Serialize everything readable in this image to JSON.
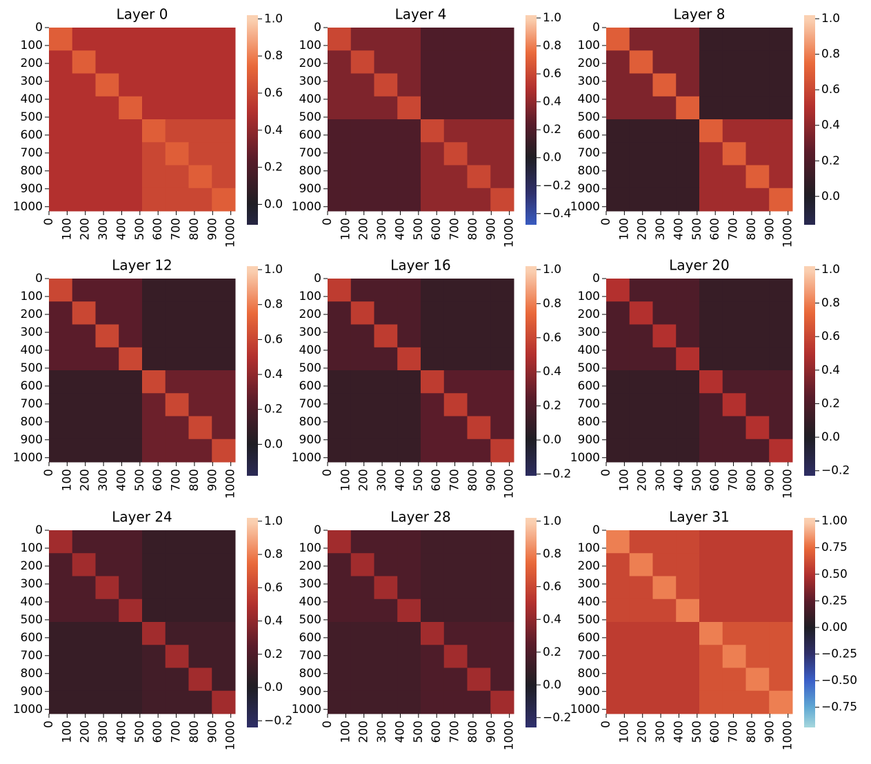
{
  "chart_data": [
    {
      "type": "heatmap",
      "title": "Layer 0",
      "cmap": "icefire",
      "xlim": [
        0,
        1024
      ],
      "ylim": [
        0,
        1024
      ],
      "xticks": [
        0,
        100,
        200,
        300,
        400,
        500,
        600,
        700,
        800,
        900,
        1000
      ],
      "yticks": [
        0,
        100,
        200,
        300,
        400,
        500,
        600,
        700,
        800,
        900,
        1000
      ],
      "clim": [
        -0.11,
        1.02
      ],
      "cticks": [
        {
          "value": 0,
          "label": "0.0"
        },
        0.2,
        0.4,
        0.6,
        0.8,
        {
          "value": 1,
          "label": "1.0"
        }
      ],
      "z": [
        [
          0.7,
          0.5,
          0.5,
          0.5,
          0.5,
          0.5,
          0.5,
          0.5
        ],
        [
          0.5,
          0.7,
          0.5,
          0.5,
          0.5,
          0.5,
          0.5,
          0.5
        ],
        [
          0.5,
          0.5,
          0.7,
          0.5,
          0.5,
          0.5,
          0.5,
          0.5
        ],
        [
          0.5,
          0.5,
          0.5,
          0.7,
          0.5,
          0.5,
          0.5,
          0.5
        ],
        [
          0.5,
          0.5,
          0.5,
          0.5,
          0.7,
          0.6,
          0.6,
          0.6
        ],
        [
          0.5,
          0.5,
          0.5,
          0.5,
          0.6,
          0.7,
          0.6,
          0.6
        ],
        [
          0.5,
          0.5,
          0.5,
          0.5,
          0.6,
          0.6,
          0.7,
          0.6
        ],
        [
          0.5,
          0.5,
          0.5,
          0.5,
          0.6,
          0.6,
          0.6,
          0.7
        ]
      ]
    },
    {
      "type": "heatmap",
      "title": "Layer 4",
      "cmap": "icefire",
      "xlim": [
        0,
        1024
      ],
      "ylim": [
        0,
        1024
      ],
      "xticks": [
        0,
        100,
        200,
        300,
        400,
        500,
        600,
        700,
        800,
        900,
        1000
      ],
      "yticks": [
        0,
        100,
        200,
        300,
        400,
        500,
        600,
        700,
        800,
        900,
        1000
      ],
      "clim": [
        -0.48,
        1.02
      ],
      "cticks": [
        {
          "value": -0.4,
          "label": "−0.4"
        },
        {
          "value": -0.2,
          "label": "−0.2"
        },
        {
          "value": 0,
          "label": "0.0"
        },
        0.2,
        0.4,
        0.6,
        0.8,
        {
          "value": 1,
          "label": "1.0"
        }
      ],
      "z": [
        [
          0.6,
          0.35,
          0.35,
          0.35,
          0.2,
          0.2,
          0.2,
          0.2
        ],
        [
          0.35,
          0.6,
          0.35,
          0.35,
          0.2,
          0.2,
          0.2,
          0.2
        ],
        [
          0.35,
          0.35,
          0.6,
          0.35,
          0.2,
          0.2,
          0.2,
          0.2
        ],
        [
          0.35,
          0.35,
          0.35,
          0.6,
          0.2,
          0.2,
          0.2,
          0.2
        ],
        [
          0.2,
          0.2,
          0.2,
          0.2,
          0.6,
          0.4,
          0.4,
          0.4
        ],
        [
          0.2,
          0.2,
          0.2,
          0.2,
          0.4,
          0.6,
          0.4,
          0.4
        ],
        [
          0.2,
          0.2,
          0.2,
          0.2,
          0.4,
          0.4,
          0.6,
          0.4
        ],
        [
          0.2,
          0.2,
          0.2,
          0.2,
          0.4,
          0.4,
          0.4,
          0.6
        ]
      ]
    },
    {
      "type": "heatmap",
      "title": "Layer 8",
      "cmap": "icefire",
      "xlim": [
        0,
        1024
      ],
      "ylim": [
        0,
        1024
      ],
      "xticks": [
        0,
        100,
        200,
        300,
        400,
        500,
        600,
        700,
        800,
        900,
        1000
      ],
      "yticks": [
        0,
        100,
        200,
        300,
        400,
        500,
        600,
        700,
        800,
        900,
        1000
      ],
      "clim": [
        -0.16,
        1.02
      ],
      "cticks": [
        {
          "value": 0,
          "label": "0.0"
        },
        0.2,
        0.4,
        0.6,
        0.8,
        {
          "value": 1,
          "label": "1.0"
        }
      ],
      "z": [
        [
          0.7,
          0.35,
          0.35,
          0.35,
          0.1,
          0.1,
          0.1,
          0.1
        ],
        [
          0.35,
          0.7,
          0.35,
          0.35,
          0.1,
          0.1,
          0.1,
          0.1
        ],
        [
          0.35,
          0.35,
          0.7,
          0.35,
          0.1,
          0.1,
          0.1,
          0.1
        ],
        [
          0.35,
          0.35,
          0.35,
          0.7,
          0.1,
          0.1,
          0.1,
          0.1
        ],
        [
          0.1,
          0.1,
          0.1,
          0.1,
          0.7,
          0.45,
          0.45,
          0.45
        ],
        [
          0.1,
          0.1,
          0.1,
          0.1,
          0.45,
          0.7,
          0.45,
          0.45
        ],
        [
          0.1,
          0.1,
          0.1,
          0.1,
          0.45,
          0.45,
          0.7,
          0.45
        ],
        [
          0.1,
          0.1,
          0.1,
          0.1,
          0.45,
          0.45,
          0.45,
          0.7
        ]
      ]
    },
    {
      "type": "heatmap",
      "title": "Layer 12",
      "cmap": "icefire",
      "xlim": [
        0,
        1024
      ],
      "ylim": [
        0,
        1024
      ],
      "xticks": [
        0,
        100,
        200,
        300,
        400,
        500,
        600,
        700,
        800,
        900,
        1000
      ],
      "yticks": [
        0,
        100,
        200,
        300,
        400,
        500,
        600,
        700,
        800,
        900,
        1000
      ],
      "clim": [
        -0.18,
        1.02
      ],
      "cticks": [
        {
          "value": 0,
          "label": "0.0"
        },
        0.2,
        0.4,
        0.6,
        0.8,
        {
          "value": 1,
          "label": "1.0"
        }
      ],
      "z": [
        [
          0.6,
          0.25,
          0.25,
          0.25,
          0.1,
          0.1,
          0.1,
          0.1
        ],
        [
          0.25,
          0.6,
          0.25,
          0.25,
          0.1,
          0.1,
          0.1,
          0.1
        ],
        [
          0.25,
          0.25,
          0.6,
          0.25,
          0.1,
          0.1,
          0.1,
          0.1
        ],
        [
          0.25,
          0.25,
          0.25,
          0.6,
          0.1,
          0.1,
          0.1,
          0.1
        ],
        [
          0.1,
          0.1,
          0.1,
          0.1,
          0.6,
          0.3,
          0.3,
          0.3
        ],
        [
          0.1,
          0.1,
          0.1,
          0.1,
          0.3,
          0.6,
          0.3,
          0.3
        ],
        [
          0.1,
          0.1,
          0.1,
          0.1,
          0.3,
          0.3,
          0.6,
          0.3
        ],
        [
          0.1,
          0.1,
          0.1,
          0.1,
          0.3,
          0.3,
          0.3,
          0.6
        ]
      ]
    },
    {
      "type": "heatmap",
      "title": "Layer 16",
      "cmap": "icefire",
      "xlim": [
        0,
        1024
      ],
      "ylim": [
        0,
        1024
      ],
      "xticks": [
        0,
        100,
        200,
        300,
        400,
        500,
        600,
        700,
        800,
        900,
        1000
      ],
      "yticks": [
        0,
        100,
        200,
        300,
        400,
        500,
        600,
        700,
        800,
        900,
        1000
      ],
      "clim": [
        -0.21,
        1.02
      ],
      "cticks": [
        {
          "value": -0.2,
          "label": "−0.2"
        },
        {
          "value": 0,
          "label": "0.0"
        },
        0.2,
        0.4,
        0.6,
        0.8,
        {
          "value": 1,
          "label": "1.0"
        }
      ],
      "z": [
        [
          0.55,
          0.2,
          0.2,
          0.2,
          0.1,
          0.1,
          0.1,
          0.1
        ],
        [
          0.2,
          0.55,
          0.2,
          0.2,
          0.1,
          0.1,
          0.1,
          0.1
        ],
        [
          0.2,
          0.2,
          0.55,
          0.2,
          0.1,
          0.1,
          0.1,
          0.1
        ],
        [
          0.2,
          0.2,
          0.2,
          0.55,
          0.1,
          0.1,
          0.1,
          0.1
        ],
        [
          0.1,
          0.1,
          0.1,
          0.1,
          0.55,
          0.25,
          0.25,
          0.25
        ],
        [
          0.1,
          0.1,
          0.1,
          0.1,
          0.25,
          0.55,
          0.25,
          0.25
        ],
        [
          0.1,
          0.1,
          0.1,
          0.1,
          0.25,
          0.25,
          0.55,
          0.25
        ],
        [
          0.1,
          0.1,
          0.1,
          0.1,
          0.25,
          0.25,
          0.25,
          0.55
        ]
      ]
    },
    {
      "type": "heatmap",
      "title": "Layer 20",
      "cmap": "icefire",
      "xlim": [
        0,
        1024
      ],
      "ylim": [
        0,
        1024
      ],
      "xticks": [
        0,
        100,
        200,
        300,
        400,
        500,
        600,
        700,
        800,
        900,
        1000
      ],
      "yticks": [
        0,
        100,
        200,
        300,
        400,
        500,
        600,
        700,
        800,
        900,
        1000
      ],
      "clim": [
        -0.23,
        1.02
      ],
      "cticks": [
        {
          "value": -0.2,
          "label": "−0.2"
        },
        {
          "value": 0,
          "label": "0.0"
        },
        0.2,
        0.4,
        0.6,
        0.8,
        {
          "value": 1,
          "label": "1.0"
        }
      ],
      "z": [
        [
          0.5,
          0.2,
          0.2,
          0.2,
          0.1,
          0.1,
          0.1,
          0.1
        ],
        [
          0.2,
          0.5,
          0.2,
          0.2,
          0.1,
          0.1,
          0.1,
          0.1
        ],
        [
          0.2,
          0.2,
          0.5,
          0.2,
          0.1,
          0.1,
          0.1,
          0.1
        ],
        [
          0.2,
          0.2,
          0.2,
          0.5,
          0.1,
          0.1,
          0.1,
          0.1
        ],
        [
          0.1,
          0.1,
          0.1,
          0.1,
          0.5,
          0.2,
          0.2,
          0.2
        ],
        [
          0.1,
          0.1,
          0.1,
          0.1,
          0.2,
          0.5,
          0.2,
          0.2
        ],
        [
          0.1,
          0.1,
          0.1,
          0.1,
          0.2,
          0.2,
          0.5,
          0.2
        ],
        [
          0.1,
          0.1,
          0.1,
          0.1,
          0.2,
          0.2,
          0.2,
          0.5
        ]
      ]
    },
    {
      "type": "heatmap",
      "title": "Layer 24",
      "cmap": "icefire",
      "xlim": [
        0,
        1024
      ],
      "ylim": [
        0,
        1024
      ],
      "xticks": [
        0,
        100,
        200,
        300,
        400,
        500,
        600,
        700,
        800,
        900,
        1000
      ],
      "yticks": [
        0,
        100,
        200,
        300,
        400,
        500,
        600,
        700,
        800,
        900,
        1000
      ],
      "clim": [
        -0.24,
        1.02
      ],
      "cticks": [
        {
          "value": -0.2,
          "label": "−0.2"
        },
        {
          "value": 0,
          "label": "0.0"
        },
        0.2,
        0.4,
        0.6,
        0.8,
        {
          "value": 1,
          "label": "1.0"
        }
      ],
      "z": [
        [
          0.45,
          0.2,
          0.2,
          0.2,
          0.1,
          0.1,
          0.1,
          0.1
        ],
        [
          0.2,
          0.45,
          0.2,
          0.2,
          0.1,
          0.1,
          0.1,
          0.1
        ],
        [
          0.2,
          0.2,
          0.45,
          0.2,
          0.1,
          0.1,
          0.1,
          0.1
        ],
        [
          0.2,
          0.2,
          0.2,
          0.45,
          0.1,
          0.1,
          0.1,
          0.1
        ],
        [
          0.1,
          0.1,
          0.1,
          0.1,
          0.45,
          0.15,
          0.15,
          0.15
        ],
        [
          0.1,
          0.1,
          0.1,
          0.1,
          0.15,
          0.45,
          0.15,
          0.15
        ],
        [
          0.1,
          0.1,
          0.1,
          0.1,
          0.15,
          0.15,
          0.45,
          0.15
        ],
        [
          0.1,
          0.1,
          0.1,
          0.1,
          0.15,
          0.15,
          0.15,
          0.45
        ]
      ]
    },
    {
      "type": "heatmap",
      "title": "Layer 28",
      "cmap": "icefire",
      "xlim": [
        0,
        1024
      ],
      "ylim": [
        0,
        1024
      ],
      "xticks": [
        0,
        100,
        200,
        300,
        400,
        500,
        600,
        700,
        800,
        900,
        1000
      ],
      "yticks": [
        0,
        100,
        200,
        300,
        400,
        500,
        600,
        700,
        800,
        900,
        1000
      ],
      "clim": [
        -0.26,
        1.02
      ],
      "cticks": [
        {
          "value": -0.2,
          "label": "−0.2"
        },
        {
          "value": 0,
          "label": "0.0"
        },
        0.2,
        0.4,
        0.6,
        0.8,
        {
          "value": 1,
          "label": "1.0"
        }
      ],
      "z": [
        [
          0.45,
          0.2,
          0.2,
          0.2,
          0.15,
          0.15,
          0.15,
          0.15
        ],
        [
          0.2,
          0.45,
          0.2,
          0.2,
          0.15,
          0.15,
          0.15,
          0.15
        ],
        [
          0.2,
          0.2,
          0.45,
          0.2,
          0.15,
          0.15,
          0.15,
          0.15
        ],
        [
          0.2,
          0.2,
          0.2,
          0.45,
          0.15,
          0.15,
          0.15,
          0.15
        ],
        [
          0.15,
          0.15,
          0.15,
          0.15,
          0.45,
          0.2,
          0.2,
          0.2
        ],
        [
          0.15,
          0.15,
          0.15,
          0.15,
          0.2,
          0.45,
          0.2,
          0.2
        ],
        [
          0.15,
          0.15,
          0.15,
          0.15,
          0.2,
          0.2,
          0.45,
          0.2
        ],
        [
          0.15,
          0.15,
          0.15,
          0.15,
          0.2,
          0.2,
          0.2,
          0.45
        ]
      ]
    },
    {
      "type": "heatmap",
      "title": "Layer 31",
      "cmap": "icefire",
      "xlim": [
        0,
        1024
      ],
      "ylim": [
        0,
        1024
      ],
      "xticks": [
        0,
        100,
        200,
        300,
        400,
        500,
        600,
        700,
        800,
        900,
        1000
      ],
      "yticks": [
        0,
        100,
        200,
        300,
        400,
        500,
        600,
        700,
        800,
        900,
        1000
      ],
      "clim": [
        -0.94,
        1.03
      ],
      "cticks": [
        {
          "value": -0.75,
          "label": "−0.75"
        },
        {
          "value": -0.5,
          "label": "−0.50"
        },
        {
          "value": -0.25,
          "label": "−0.25"
        },
        {
          "value": 0,
          "label": "0.00"
        },
        0.25,
        {
          "value": 0.5,
          "label": "0.50"
        },
        0.75,
        {
          "value": 1,
          "label": "1.00"
        }
      ],
      "z": [
        [
          0.8,
          0.6,
          0.6,
          0.6,
          0.55,
          0.55,
          0.55,
          0.55
        ],
        [
          0.6,
          0.8,
          0.6,
          0.6,
          0.55,
          0.55,
          0.55,
          0.55
        ],
        [
          0.6,
          0.6,
          0.8,
          0.6,
          0.55,
          0.55,
          0.55,
          0.55
        ],
        [
          0.6,
          0.6,
          0.6,
          0.8,
          0.55,
          0.55,
          0.55,
          0.55
        ],
        [
          0.55,
          0.55,
          0.55,
          0.55,
          0.8,
          0.65,
          0.65,
          0.65
        ],
        [
          0.55,
          0.55,
          0.55,
          0.55,
          0.65,
          0.8,
          0.65,
          0.65
        ],
        [
          0.55,
          0.55,
          0.55,
          0.55,
          0.65,
          0.65,
          0.8,
          0.65
        ],
        [
          0.55,
          0.55,
          0.55,
          0.55,
          0.65,
          0.65,
          0.65,
          0.8
        ]
      ]
    }
  ]
}
